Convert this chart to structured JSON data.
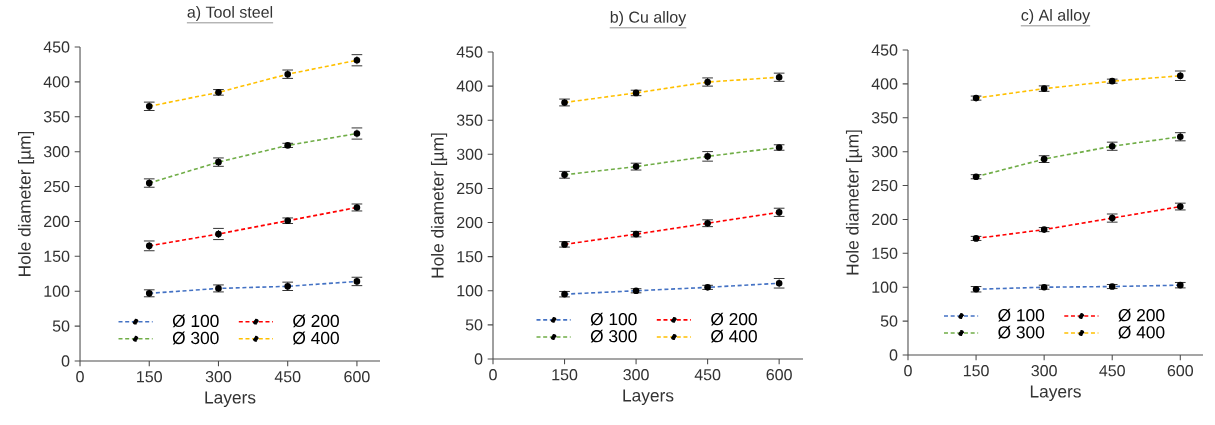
{
  "chart_data": [
    {
      "type": "line",
      "title": "a) Tool steel",
      "xlabel": "Layers",
      "ylabel": "Hole diameter [µm]",
      "x": [
        150,
        300,
        450,
        600
      ],
      "xlim": [
        0,
        650
      ],
      "xticks": [
        0,
        150,
        300,
        450,
        600
      ],
      "ylim": [
        0,
        450
      ],
      "yticks": [
        0,
        50,
        100,
        150,
        200,
        250,
        300,
        350,
        400,
        450
      ],
      "legend": "bottom",
      "marker": "circle",
      "line_style": "dashed",
      "grid": false,
      "series": [
        {
          "name": "Ø 100",
          "color": "#4472c4",
          "values": [
            97,
            104,
            107,
            114
          ],
          "errors": [
            5,
            5,
            6,
            6
          ]
        },
        {
          "name": "Ø 200",
          "color": "#ff0000",
          "values": [
            165,
            182,
            201,
            220
          ],
          "errors": [
            7,
            8,
            4,
            5
          ]
        },
        {
          "name": "Ø 300",
          "color": "#70ad47",
          "values": [
            255,
            285,
            309,
            326
          ],
          "errors": [
            6,
            6,
            3,
            8
          ]
        },
        {
          "name": "Ø 400",
          "color": "#ffc000",
          "values": [
            365,
            385,
            411,
            431
          ],
          "errors": [
            6,
            4,
            6,
            8
          ]
        }
      ]
    },
    {
      "type": "line",
      "title": "b) Cu alloy",
      "xlabel": "Layers",
      "ylabel": "Hole diameter [µm]",
      "x": [
        150,
        300,
        450,
        600
      ],
      "xlim": [
        0,
        650
      ],
      "xticks": [
        0,
        150,
        300,
        450,
        600
      ],
      "ylim": [
        0,
        450
      ],
      "yticks": [
        0,
        50,
        100,
        150,
        200,
        250,
        300,
        350,
        400,
        450
      ],
      "legend": "bottom",
      "marker": "circle",
      "line_style": "dashed",
      "grid": false,
      "series": [
        {
          "name": "Ø 100",
          "color": "#4472c4",
          "values": [
            95,
            100,
            105,
            111
          ],
          "errors": [
            4,
            3,
            3,
            7
          ]
        },
        {
          "name": "Ø 200",
          "color": "#ff0000",
          "values": [
            168,
            183,
            199,
            215
          ],
          "errors": [
            4,
            4,
            5,
            6
          ]
        },
        {
          "name": "Ø 300",
          "color": "#70ad47",
          "values": [
            270,
            282,
            297,
            310
          ],
          "errors": [
            5,
            5,
            7,
            4
          ]
        },
        {
          "name": "Ø 400",
          "color": "#ffc000",
          "values": [
            376,
            390,
            406,
            413
          ],
          "errors": [
            5,
            4,
            6,
            6
          ]
        }
      ]
    },
    {
      "type": "line",
      "title": "c) Al alloy",
      "xlabel": "Layers",
      "ylabel": "Hole diameter [µm]",
      "x": [
        150,
        300,
        450,
        600
      ],
      "xlim": [
        0,
        650
      ],
      "xticks": [
        0,
        150,
        300,
        450,
        600
      ],
      "ylim": [
        0,
        450
      ],
      "yticks": [
        0,
        50,
        100,
        150,
        200,
        250,
        300,
        350,
        400,
        450
      ],
      "legend": "bottom",
      "marker": "circle",
      "line_style": "dashed",
      "grid": false,
      "series": [
        {
          "name": "Ø 100",
          "color": "#4472c4",
          "values": [
            97,
            100,
            101,
            103
          ],
          "errors": [
            4,
            3,
            3,
            4
          ]
        },
        {
          "name": "Ø 200",
          "color": "#ff0000",
          "values": [
            172,
            185,
            202,
            219
          ],
          "errors": [
            3,
            3,
            6,
            5
          ]
        },
        {
          "name": "Ø 300",
          "color": "#70ad47",
          "values": [
            263,
            289,
            308,
            322
          ],
          "errors": [
            3,
            5,
            6,
            6
          ]
        },
        {
          "name": "Ø 400",
          "color": "#ffc000",
          "values": [
            379,
            393,
            404,
            412
          ],
          "errors": [
            3,
            4,
            3,
            7
          ]
        }
      ]
    }
  ]
}
